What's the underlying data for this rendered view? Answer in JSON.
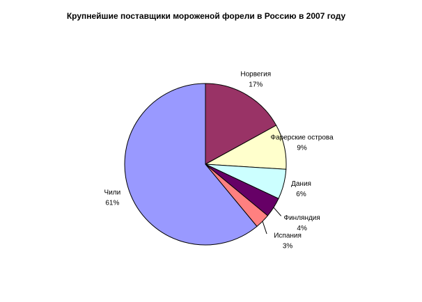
{
  "chart_data": {
    "type": "pie",
    "title": "Крупнейшие поставщики мороженой форели в Россию в 2007 году",
    "categories": [
      "Норвегия",
      "Фарерские острова",
      "Дания",
      "Финляндия",
      "Испания",
      "Чили"
    ],
    "values": [
      17,
      9,
      6,
      4,
      3,
      61
    ],
    "value_labels": [
      "17%",
      "9%",
      "6%",
      "4%",
      "3%",
      "61%"
    ],
    "colors": [
      "#993366",
      "#FFFFCC",
      "#CCFFFF",
      "#660066",
      "#FF8080",
      "#9999FF"
    ]
  }
}
